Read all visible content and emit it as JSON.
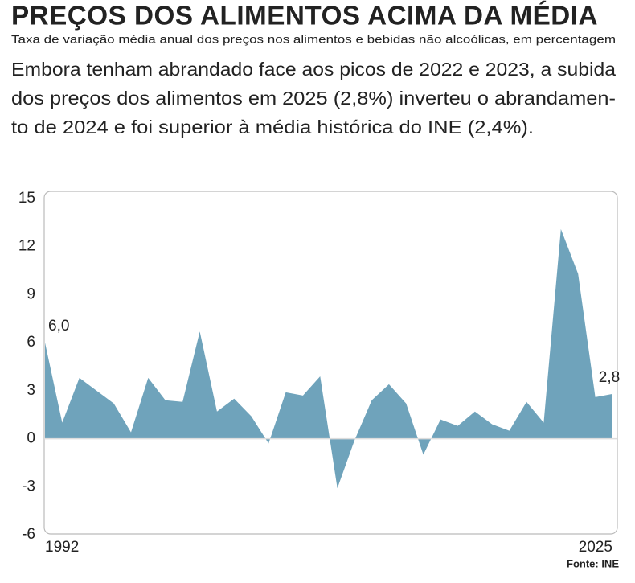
{
  "chart_data": {
    "type": "area",
    "title": "PREÇOS DOS ALIMENTOS ACIMA DA MÉDIA",
    "subtitle": "Taxa de variação média anual dos preços nos alimentos e bebidas não alcoólicas, em percentagem",
    "description": [
      "Embora tenham abrandado face aos picos de 2022 e 2023, a subida",
      "dos preços dos alimentos em 2025 (2,8%) inverteu o abrandamen-",
      "to de 2024 e foi superior à média histórica do INE (2,4%)."
    ],
    "source": "Fonte: INE",
    "x": [
      1992,
      1993,
      1994,
      1995,
      1996,
      1997,
      1998,
      1999,
      2000,
      2001,
      2002,
      2003,
      2004,
      2005,
      2006,
      2007,
      2008,
      2009,
      2010,
      2011,
      2012,
      2013,
      2014,
      2015,
      2016,
      2017,
      2018,
      2019,
      2020,
      2021,
      2022,
      2023,
      2024,
      2025
    ],
    "values": [
      6.0,
      1.0,
      3.8,
      3.0,
      2.2,
      0.4,
      3.8,
      2.4,
      2.3,
      6.7,
      1.7,
      2.5,
      1.4,
      -0.3,
      2.9,
      2.7,
      3.9,
      -3.1,
      -0.1,
      2.4,
      3.4,
      2.2,
      -1.0,
      1.2,
      0.8,
      1.7,
      0.9,
      0.5,
      2.3,
      1.0,
      13.1,
      10.3,
      2.6,
      2.8
    ],
    "value_labels": [
      "6,0",
      null,
      null,
      null,
      null,
      null,
      null,
      null,
      null,
      null,
      null,
      null,
      null,
      null,
      null,
      null,
      null,
      null,
      null,
      null,
      null,
      null,
      null,
      null,
      null,
      null,
      null,
      null,
      null,
      null,
      null,
      null,
      null,
      "2,8"
    ],
    "color": "#6fa3bb",
    "xlim": [
      1992,
      2025
    ],
    "xticks": [
      1992,
      2025
    ],
    "ylim": [
      -6,
      15
    ],
    "yticks": [
      15,
      12,
      9,
      6,
      3,
      0,
      -3,
      -6
    ]
  }
}
